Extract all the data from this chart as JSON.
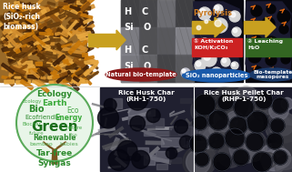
{
  "background_color": "#ffffff",
  "top_panels": {
    "panel1_label": "Rice husk\n(SiO₂-rich\nbiomass)",
    "bio_template_label": "Natural bio-template",
    "bio_template_bg": "#8b1a1a",
    "sio2_label": "SiO₂ nanoparticles",
    "sio2_bg": "#1a5aaa",
    "mesopores_label": "Bio-template\nmesopores",
    "mesopores_bg": "#1a3a6a",
    "pyrolysis_label": "Pyrolysis",
    "activation_label": "① Activation\nKOH/K₂CO₃",
    "activation_bg": "#cc2222",
    "leaching_label": "② Leaching\nH₂O",
    "leaching_bg": "#336622"
  },
  "bottom_panels": {
    "left_tree_label": "Tar-free\nSyngas",
    "mid_label": "Rice Husk Char\n(RH-1-750)",
    "right_label": "Rice Husk Pellet Char\n(RHP-1-750)"
  },
  "arrow_color": "#c8a020",
  "figsize": [
    3.21,
    1.89
  ],
  "dpi": 100
}
